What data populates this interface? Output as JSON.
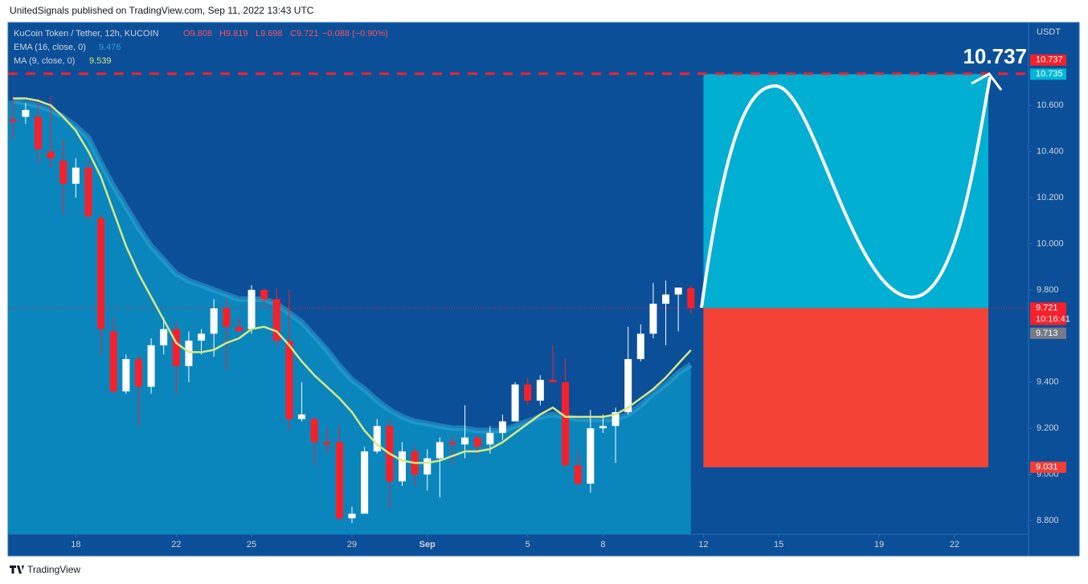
{
  "header": "UnitedSignals published on TradingView.com, Sep 11, 2022 13:43 UTC",
  "footer": "TradingView",
  "chart_data": {
    "type": "candlestick",
    "title": "KuCoin Token / Tether, 12h, KUCOIN",
    "ohlc_legend": [
      "O9.808",
      "H9.819",
      "L9.698",
      "C9.721",
      "−0.088 (−0.90%)"
    ],
    "x": [
      15.5,
      16,
      16.5,
      17,
      17.5,
      18,
      18.5,
      19,
      19.5,
      20,
      20.5,
      21,
      21.5,
      22,
      22.5,
      23,
      23.5,
      24,
      24.5,
      25,
      25.5,
      26,
      26.5,
      27,
      27.5,
      28,
      28.5,
      29,
      29.5,
      30,
      30.5,
      31,
      31.5,
      32,
      32.5,
      33,
      33.5,
      34,
      34.5,
      35,
      35.5,
      36,
      36.5,
      37,
      37.5,
      38,
      38.5,
      39,
      39.5,
      40,
      40.5,
      41,
      41.5,
      42,
      42.5
    ],
    "open": [
      10.54,
      10.55,
      10.55,
      10.4,
      10.36,
      10.26,
      10.33,
      10.11,
      9.62,
      9.36,
      9.5,
      9.38,
      9.56,
      9.63,
      9.47,
      9.58,
      9.61,
      9.72,
      9.64,
      9.63,
      9.8,
      9.76,
      9.58,
      9.24,
      9.24,
      9.14,
      9.14,
      8.81,
      8.83,
      9.1,
      9.21,
      8.97,
      9.1,
      9.0,
      9.07,
      9.14,
      9.13,
      9.16,
      9.13,
      9.18,
      9.23,
      9.39,
      9.32,
      9.41,
      9.4,
      9.04,
      8.96,
      9.2,
      9.21,
      9.27,
      9.5,
      9.61,
      9.74,
      9.78,
      9.808
    ],
    "high": [
      10.64,
      10.61,
      10.63,
      10.64,
      10.45,
      10.37,
      10.36,
      10.13,
      9.68,
      9.52,
      9.52,
      9.59,
      9.68,
      9.66,
      9.62,
      9.63,
      9.76,
      9.76,
      9.68,
      9.82,
      9.81,
      9.81,
      9.8,
      9.4,
      9.25,
      9.2,
      9.21,
      8.86,
      9.12,
      9.24,
      9.24,
      9.14,
      9.12,
      9.11,
      9.16,
      9.17,
      9.3,
      9.17,
      9.21,
      9.26,
      9.4,
      9.42,
      9.43,
      9.56,
      9.5,
      9.11,
      9.28,
      9.26,
      9.29,
      9.64,
      9.65,
      9.83,
      9.84,
      9.81,
      9.819
    ],
    "low": [
      10.45,
      10.52,
      10.35,
      10.33,
      10.13,
      10.2,
      10.1,
      9.52,
      9.35,
      9.35,
      9.21,
      9.35,
      9.52,
      9.35,
      9.4,
      9.52,
      9.51,
      9.45,
      9.62,
      9.61,
      9.72,
      9.56,
      9.19,
      9.23,
      9.04,
      9.09,
      8.8,
      8.79,
      8.83,
      9.09,
      8.85,
      8.95,
      8.95,
      8.93,
      8.9,
      9.04,
      9.07,
      9.08,
      9.09,
      9.15,
      9.23,
      9.3,
      9.3,
      9.4,
      9.03,
      8.95,
      8.92,
      9.18,
      9.05,
      9.26,
      9.49,
      9.59,
      9.56,
      9.62,
      9.698
    ],
    "close": [
      10.53,
      10.58,
      10.41,
      10.37,
      10.26,
      10.33,
      10.12,
      9.63,
      9.36,
      9.5,
      9.38,
      9.56,
      9.63,
      9.47,
      9.58,
      9.61,
      9.72,
      9.64,
      9.62,
      9.8,
      9.76,
      9.58,
      9.24,
      9.26,
      9.14,
      9.13,
      8.81,
      8.83,
      9.1,
      9.21,
      8.97,
      9.1,
      9.0,
      9.07,
      9.14,
      9.13,
      9.16,
      9.12,
      9.18,
      9.23,
      9.39,
      9.32,
      9.41,
      9.4,
      9.04,
      8.96,
      9.2,
      9.21,
      9.27,
      9.5,
      9.61,
      9.74,
      9.78,
      9.81,
      9.721
    ],
    "up_color": "#ffffff",
    "down_color": "#f7202a",
    "indicators": [
      {
        "name": "EMA (16, close, 0)",
        "color": "#2fa6d6",
        "values": [
          10.62,
          10.61,
          10.6,
          10.58,
          10.55,
          10.51,
          10.46,
          10.35,
          10.25,
          10.16,
          10.07,
          9.99,
          9.93,
          9.87,
          9.84,
          9.82,
          9.8,
          9.78,
          9.76,
          9.76,
          9.76,
          9.74,
          9.7,
          9.66,
          9.6,
          9.54,
          9.47,
          9.41,
          9.37,
          9.32,
          9.28,
          9.25,
          9.23,
          9.22,
          9.21,
          9.2,
          9.2,
          9.19,
          9.19,
          9.19,
          9.21,
          9.23,
          9.25,
          9.26,
          9.25,
          9.24,
          9.24,
          9.24,
          9.24,
          9.26,
          9.3,
          9.35,
          9.39,
          9.44,
          9.476
        ]
      },
      {
        "name": "MA (9, close, 0)",
        "color": "#d6e884",
        "values": [
          10.63,
          10.63,
          10.62,
          10.6,
          10.55,
          10.49,
          10.4,
          10.29,
          10.14,
          9.99,
          9.87,
          9.77,
          9.67,
          9.57,
          9.53,
          9.53,
          9.54,
          9.57,
          9.59,
          9.63,
          9.64,
          9.62,
          9.56,
          9.49,
          9.43,
          9.38,
          9.33,
          9.27,
          9.19,
          9.13,
          9.09,
          9.06,
          9.05,
          9.05,
          9.06,
          9.08,
          9.1,
          9.1,
          9.11,
          9.14,
          9.18,
          9.22,
          9.26,
          9.29,
          9.25,
          9.25,
          9.25,
          9.25,
          9.26,
          9.29,
          9.33,
          9.37,
          9.42,
          9.48,
          9.539
        ]
      }
    ],
    "xlim": [
      15.3,
      55.95
    ],
    "ylim": [
      8.741,
      10.959
    ],
    "xticks": [
      {
        "value": 18,
        "label": "18"
      },
      {
        "value": 22,
        "label": "22"
      },
      {
        "value": 25,
        "label": "25"
      },
      {
        "value": 29,
        "label": "29"
      },
      {
        "value": 32,
        "label": "Sep"
      },
      {
        "value": 36,
        "label": "5"
      },
      {
        "value": 39,
        "label": "8"
      },
      {
        "value": 43,
        "label": "12"
      },
      {
        "value": 46,
        "label": "15"
      },
      {
        "value": 50,
        "label": "19"
      },
      {
        "value": 53,
        "label": "22"
      }
    ],
    "yticks": [
      {
        "value": 10.6,
        "label": "10.600"
      },
      {
        "value": 10.4,
        "label": "10.400"
      },
      {
        "value": 10.2,
        "label": "10.200"
      },
      {
        "value": 10,
        "label": "10.000"
      },
      {
        "value": 9.8,
        "label": "9.800"
      },
      {
        "value": 9.4,
        "label": "9.400"
      },
      {
        "value": 9.2,
        "label": "9.200"
      },
      {
        "value": 9,
        "label": "9.000"
      },
      {
        "value": 8.8,
        "label": "8.800"
      }
    ],
    "y_axis_label": "USDT",
    "grid": false,
    "price_labels": [
      {
        "value": 10.737,
        "label": "10.737",
        "color": "#f7202a"
      },
      {
        "value": 10.735,
        "label": "10.735",
        "color": "#00b8d4"
      },
      {
        "value": 9.721,
        "label": "9.721",
        "sublabel": "10:16:41",
        "color": "#f7202a"
      },
      {
        "value": 9.713,
        "label": "9.713",
        "color": "#787b86"
      },
      {
        "value": 9.031,
        "label": "9.031",
        "color": "#f23d36"
      }
    ],
    "annotation": "10.737",
    "projection_x": [
      43,
      54.35
    ],
    "projection_colors": [
      "#00afd1",
      "#f44336"
    ]
  }
}
